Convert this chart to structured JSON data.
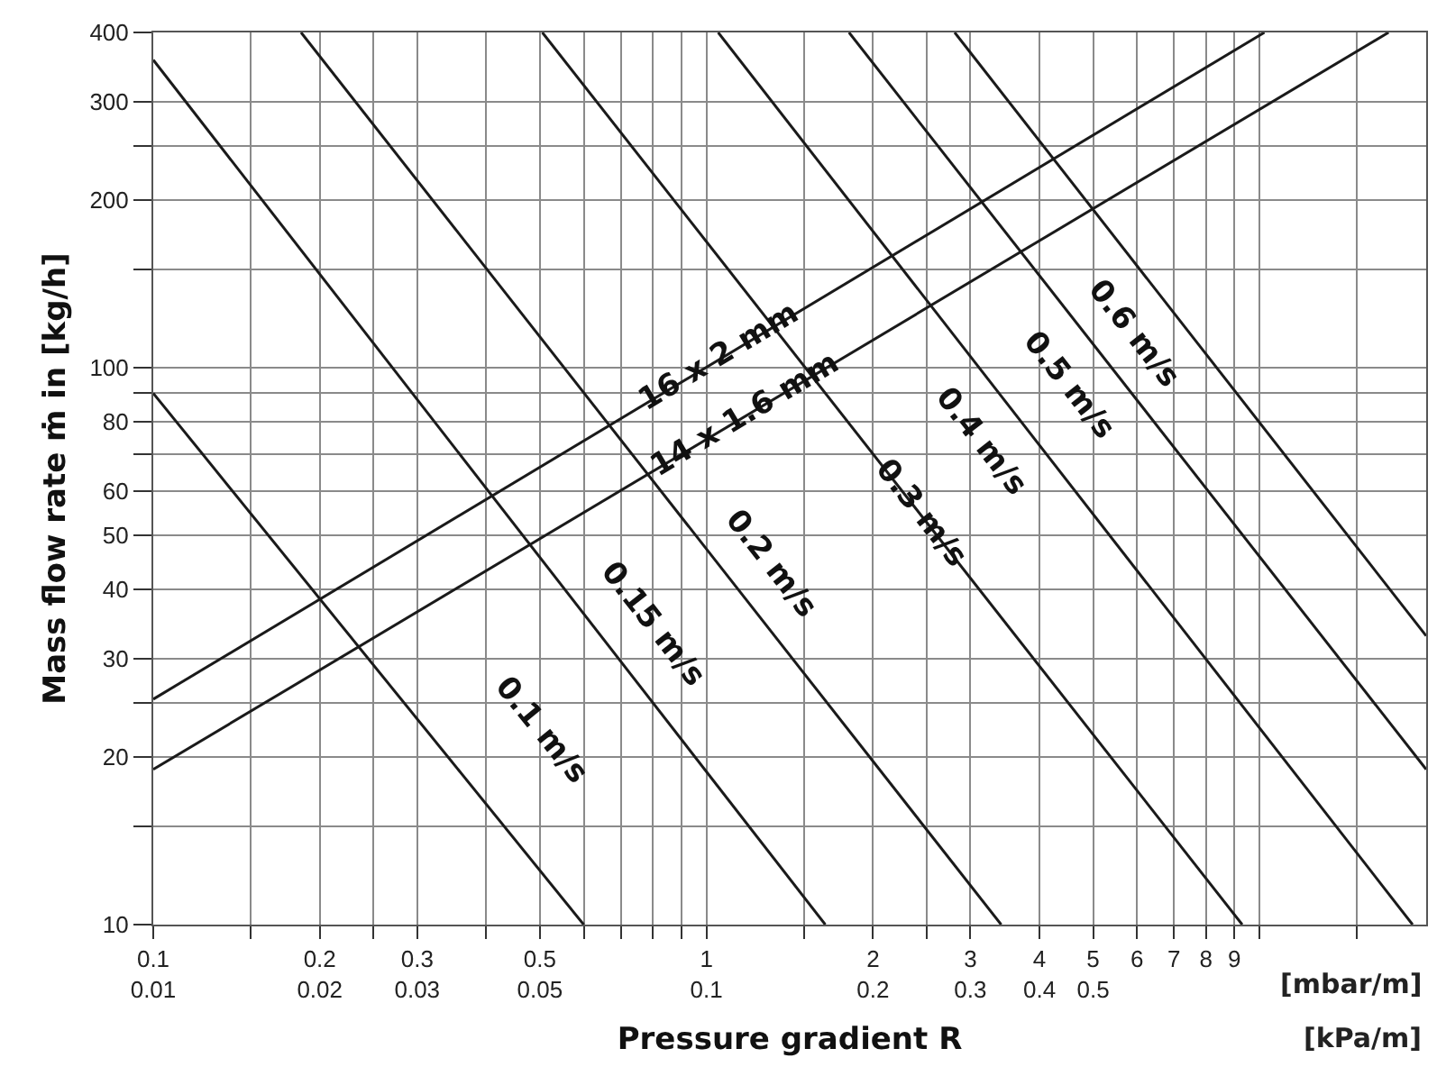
{
  "chart_data": {
    "type": "line",
    "xlabel": "Pressure gradient R",
    "ylabel": "Mass flow rate ṁ in [kg/h]",
    "annotations": [
      "[mbar/m]",
      "[kPa/m]"
    ],
    "log": "xy",
    "grid": true,
    "legend": false,
    "marker": "none",
    "line_style": "solid",
    "xlim": [
      0.1,
      20
    ],
    "ylim": [
      10,
      400
    ],
    "xticks": [
      {
        "value": 0.1,
        "label": "0.1\n0.01"
      },
      {
        "value": 0.15,
        "label": null
      },
      {
        "value": 0.2,
        "label": "0.2\n0.02"
      },
      {
        "value": 0.25,
        "label": null
      },
      {
        "value": 0.3,
        "label": "0.3\n0.03"
      },
      {
        "value": 0.4,
        "label": null
      },
      {
        "value": 0.5,
        "label": "0.5\n0.05"
      },
      {
        "value": 0.6,
        "label": null
      },
      {
        "value": 0.7,
        "label": null
      },
      {
        "value": 0.8,
        "label": null
      },
      {
        "value": 0.9,
        "label": null
      },
      {
        "value": 1,
        "label": "1\n0.1"
      },
      {
        "value": 1.5,
        "label": null
      },
      {
        "value": 2,
        "label": "2\n0.2"
      },
      {
        "value": 2.5,
        "label": null
      },
      {
        "value": 3,
        "label": "3\n0.3"
      },
      {
        "value": 4,
        "label": "4\n0.4"
      },
      {
        "value": 5,
        "label": "5\n0.5"
      },
      6,
      7,
      8,
      9,
      {
        "value": 10,
        "label": null
      },
      {
        "value": 15,
        "label": null
      }
    ],
    "yticks": [
      10,
      {
        "value": 15,
        "label": null
      },
      20,
      {
        "value": 25,
        "label": null
      },
      30,
      40,
      50,
      60,
      {
        "value": 70,
        "label": null
      },
      80,
      {
        "value": 90,
        "label": null
      },
      100,
      {
        "value": 150,
        "label": null
      },
      200,
      {
        "value": 250,
        "label": null
      },
      300,
      400
    ],
    "series": [
      {
        "name": "0.1 m/s",
        "color": "#1a1a1a",
        "x": [
          0.1,
          0.6
        ],
        "values": [
          90,
          10
        ]
      },
      {
        "name": "0.15 m/s",
        "color": "#1a1a1a",
        "x": [
          0.1,
          1.64
        ],
        "values": [
          357,
          10
        ]
      },
      {
        "name": "0.2 m/s",
        "color": "#1a1a1a",
        "x": [
          0.185,
          3.41
        ],
        "values": [
          400,
          10
        ]
      },
      {
        "name": "0.3 m/s",
        "color": "#1a1a1a",
        "x": [
          0.505,
          9.3
        ],
        "values": [
          400,
          10
        ]
      },
      {
        "name": "0.4 m/s",
        "color": "#1a1a1a",
        "x": [
          1.05,
          18.9
        ],
        "values": [
          400,
          10
        ]
      },
      {
        "name": "0.5 m/s",
        "color": "#1a1a1a",
        "x": [
          1.81,
          20
        ],
        "values": [
          400,
          19
        ]
      },
      {
        "name": "0.6 m/s",
        "color": "#1a1a1a",
        "x": [
          2.81,
          20
        ],
        "values": [
          400,
          33
        ]
      },
      {
        "name": "16 x 2 mm",
        "color": "#1a1a1a",
        "x": [
          0.1,
          10.2
        ],
        "values": [
          25.4,
          400
        ]
      },
      {
        "name": "14 x 1.6 mm",
        "color": "#1a1a1a",
        "x": [
          0.1,
          17.1
        ],
        "values": [
          19,
          400
        ]
      }
    ]
  }
}
